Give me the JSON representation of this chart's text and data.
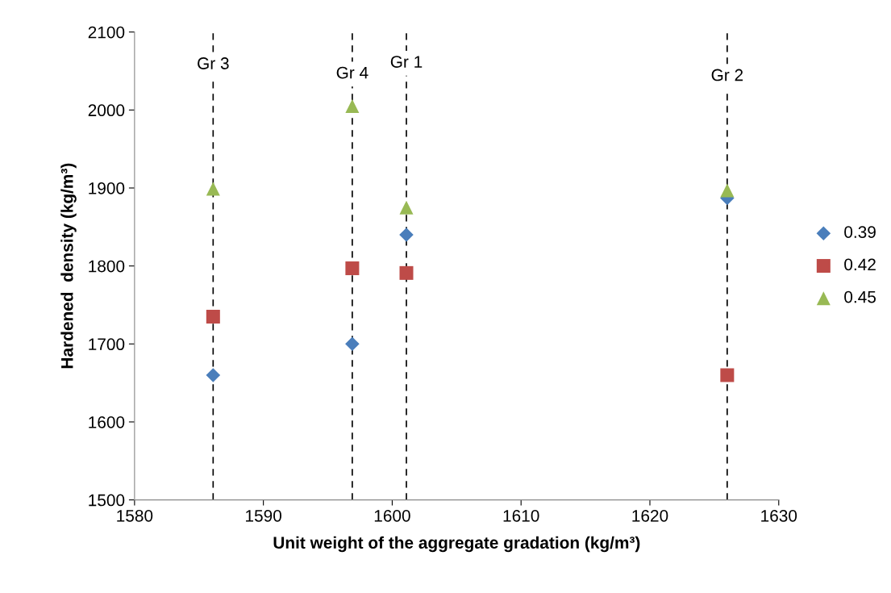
{
  "chart_data": {
    "type": "scatter",
    "xlabel": "Unit weight of the aggregate gradation (kg/m³)",
    "ylabel": "Hardened  density (kg/m³)",
    "xlim": [
      1580,
      1630
    ],
    "xticks": [
      1580,
      1590,
      1600,
      1610,
      1620,
      1630
    ],
    "ylim": [
      1500,
      2100
    ],
    "yticks": [
      1500,
      1600,
      1700,
      1800,
      1900,
      2000,
      2100
    ],
    "grid": false,
    "legend": "right",
    "series": [
      {
        "name": "0.39",
        "color": "#4a7ebb",
        "marker": "diamond",
        "x": [
          1586.1,
          1596.9,
          1601.1,
          1626.0
        ],
        "values": [
          1660,
          1700,
          1840,
          1887
        ]
      },
      {
        "name": "0.42",
        "color": "#be4b48",
        "marker": "square",
        "x": [
          1586.1,
          1596.9,
          1601.1,
          1626.0
        ],
        "values": [
          1735,
          1797,
          1791,
          1660
        ]
      },
      {
        "name": "0.45",
        "color": "#98b954",
        "marker": "triangle",
        "x": [
          1586.1,
          1596.9,
          1601.1,
          1626.0
        ],
        "values": [
          1899,
          2005,
          1875,
          1897
        ]
      }
    ],
    "ref_lines": [
      {
        "axis": "x",
        "value": 1586.1,
        "color": "#000000",
        "line_style": "dashed"
      },
      {
        "axis": "x",
        "value": 1596.9,
        "color": "#000000",
        "line_style": "dashed"
      },
      {
        "axis": "x",
        "value": 1601.1,
        "color": "#000000",
        "line_style": "dashed"
      },
      {
        "axis": "x",
        "value": 1626.0,
        "color": "#000000",
        "line_style": "dashed"
      }
    ],
    "annotations": [
      {
        "text": "Gr 3",
        "x": 1586.1,
        "y": 2058
      },
      {
        "text": "Gr 4",
        "x": 1596.9,
        "y": 2046
      },
      {
        "text": "Gr 1",
        "x": 1601.1,
        "y": 2060
      },
      {
        "text": "Gr 2",
        "x": 1626.0,
        "y": 2043
      }
    ]
  }
}
